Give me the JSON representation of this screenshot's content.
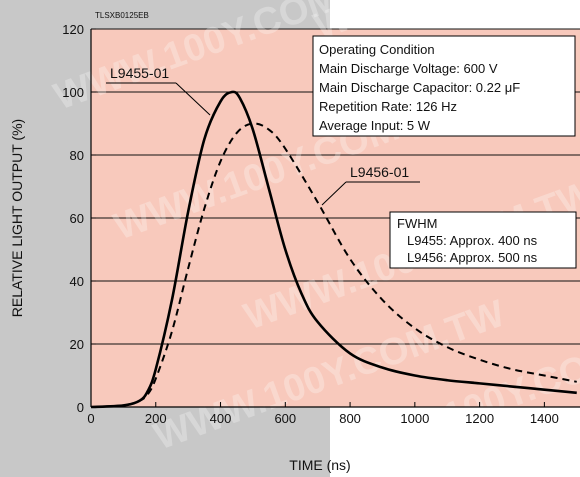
{
  "doc_code": "TLSXB0125EB",
  "watermark": "WWW.100Y.COM.TW",
  "colors": {
    "background_left": "#c8c8c8",
    "plot_fill": "#f8c9bc",
    "line": "#000000"
  },
  "chart_data": {
    "type": "line",
    "xlabel": "TIME (ns)",
    "ylabel": "RELATIVE LIGHT OUTPUT (%)",
    "xlim": [
      0,
      1500
    ],
    "ylim": [
      0,
      120
    ],
    "xticks": [
      0,
      200,
      400,
      600,
      800,
      1000,
      1200,
      1400
    ],
    "yticks": [
      0,
      20,
      40,
      60,
      80,
      100,
      120
    ],
    "grid": "horizontal",
    "series": [
      {
        "name": "L9455-01",
        "style": "solid",
        "x": [
          0,
          100,
          150,
          175,
          200,
          250,
          300,
          350,
          400,
          435,
          460,
          500,
          550,
          600,
          650,
          700,
          800,
          900,
          1000,
          1100,
          1200,
          1300,
          1400,
          1500
        ],
        "y": [
          0,
          0.5,
          2,
          5,
          12,
          34,
          62,
          85,
          97,
          100,
          98,
          88,
          69,
          50,
          36,
          27,
          17,
          12.5,
          10,
          8.5,
          7.5,
          6.5,
          5.5,
          4.5
        ]
      },
      {
        "name": "L9456-01",
        "style": "dashed",
        "x": [
          0,
          100,
          150,
          175,
          200,
          250,
          300,
          350,
          400,
          450,
          500,
          550,
          600,
          700,
          800,
          900,
          1000,
          1100,
          1200,
          1300,
          1400,
          1500
        ],
        "y": [
          0,
          0.5,
          2,
          4,
          9,
          24,
          44,
          63,
          78,
          87,
          90,
          88,
          82,
          65,
          47,
          34,
          25,
          19,
          15,
          12,
          10,
          8
        ]
      }
    ],
    "annotations": {
      "operating_condition": {
        "title": "Operating Condition",
        "lines": [
          "Main Discharge Voltage: 600 V",
          "Main Discharge Capacitor: 0.22 μF",
          "Repetition Rate: 126 Hz",
          "Average Input: 5 W"
        ]
      },
      "fwhm": {
        "title": "FWHM",
        "lines": [
          "L9455: Approx. 400 ns",
          "L9456: Approx. 500 ns"
        ]
      }
    }
  }
}
